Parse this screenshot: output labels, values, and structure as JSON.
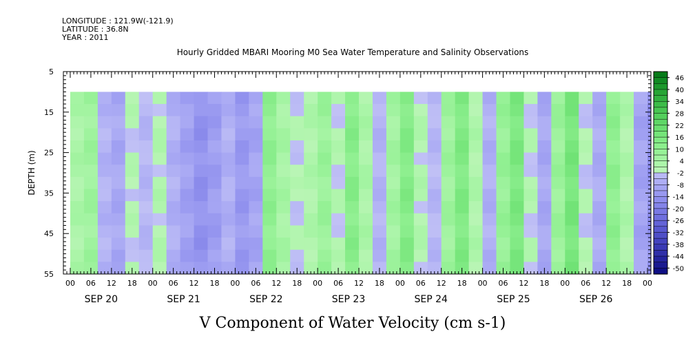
{
  "header": {
    "longitude": "LONGITUDE : 121.9W(-121.9)",
    "latitude": "LATITUDE : 36.8N",
    "year": "YEAR : 2011",
    "title": "Hourly Gridded MBARI Mooring M0 Sea Water Temperature and Salinity Observations"
  },
  "chart_data": {
    "type": "heatmap",
    "title": "Hourly Gridded MBARI Mooring M0 Sea Water Temperature and Salinity Observations",
    "xlabel": "",
    "ylabel": "DEPTH (m)",
    "bottom_label": "V Component of Water Velocity (cm s-1)",
    "ylim": [
      5,
      55
    ],
    "y_ticks": [
      5,
      15,
      25,
      35,
      45,
      55
    ],
    "data_depth_range": [
      10,
      55
    ],
    "x_hour_tick_labels": [
      "00",
      "06",
      "12",
      "18",
      "00",
      "06",
      "12",
      "18",
      "00",
      "06",
      "12",
      "18",
      "00",
      "06",
      "12",
      "18",
      "00",
      "06",
      "12",
      "18",
      "00",
      "06",
      "12",
      "18",
      "00",
      "06",
      "12",
      "18",
      "00",
      "06",
      "12",
      "18",
      "00",
      "06",
      "12",
      "18",
      "00",
      "06",
      "12",
      "18",
      "00",
      "06",
      "12",
      "18",
      "00",
      "06",
      "12",
      "18",
      "00",
      "06",
      "12",
      "18",
      "00",
      "06",
      "12",
      "18"
    ],
    "x_day_labels": [
      "SEP 20",
      "SEP 21",
      "SEP 22",
      "SEP 23",
      "SEP 24",
      "SEP 25",
      "SEP 26"
    ],
    "time_range": [
      "SEP 19 22:00",
      "SEP 26 20:00"
    ],
    "colorbar": {
      "labels": [
        "46",
        "40",
        "34",
        "28",
        "22",
        "16",
        "10",
        "4",
        "-2",
        "-8",
        "-14",
        "-20",
        "-26",
        "-32",
        "-38",
        "-44",
        "-50"
      ],
      "range": [
        -50,
        50
      ],
      "step": 3
    },
    "column_values_approx": [
      {
        "time_hr": 2,
        "v": 5
      },
      {
        "time_hr": 6,
        "v": 8
      },
      {
        "time_hr": 10,
        "v": -3
      },
      {
        "time_hr": 14,
        "v": -6
      },
      {
        "time_hr": 18,
        "v": 2
      },
      {
        "time_hr": 22,
        "v": -2
      },
      {
        "time_hr": 26,
        "v": 3
      },
      {
        "time_hr": 30,
        "v": -4
      },
      {
        "time_hr": 34,
        "v": -8
      },
      {
        "time_hr": 38,
        "v": -12
      },
      {
        "time_hr": 42,
        "v": -9
      },
      {
        "time_hr": 46,
        "v": -4
      },
      {
        "time_hr": 50,
        "v": -10
      },
      {
        "time_hr": 54,
        "v": -7
      },
      {
        "time_hr": 58,
        "v": 12
      },
      {
        "time_hr": 62,
        "v": 6
      },
      {
        "time_hr": 66,
        "v": 1
      },
      {
        "time_hr": 70,
        "v": 4
      },
      {
        "time_hr": 74,
        "v": 9
      },
      {
        "time_hr": 78,
        "v": 2
      },
      {
        "time_hr": 82,
        "v": 14
      },
      {
        "time_hr": 86,
        "v": 5
      },
      {
        "time_hr": 90,
        "v": -3
      },
      {
        "time_hr": 94,
        "v": 7
      },
      {
        "time_hr": 98,
        "v": 15
      },
      {
        "time_hr": 102,
        "v": 3
      },
      {
        "time_hr": 106,
        "v": -2
      },
      {
        "time_hr": 110,
        "v": 8
      },
      {
        "time_hr": 114,
        "v": 16
      },
      {
        "time_hr": 118,
        "v": 4
      },
      {
        "time_hr": 122,
        "v": -4
      },
      {
        "time_hr": 126,
        "v": 10
      },
      {
        "time_hr": 130,
        "v": 17
      },
      {
        "time_hr": 134,
        "v": 2
      },
      {
        "time_hr": 138,
        "v": -6
      },
      {
        "time_hr": 142,
        "v": 9
      },
      {
        "time_hr": 146,
        "v": 18
      },
      {
        "time_hr": 150,
        "v": 1
      },
      {
        "time_hr": 154,
        "v": -5
      },
      {
        "time_hr": 158,
        "v": 12
      },
      {
        "time_hr": 162,
        "v": 4
      },
      {
        "time_hr": 166,
        "v": -7
      },
      {
        "time_hr": 170,
        "v": -12
      }
    ]
  }
}
